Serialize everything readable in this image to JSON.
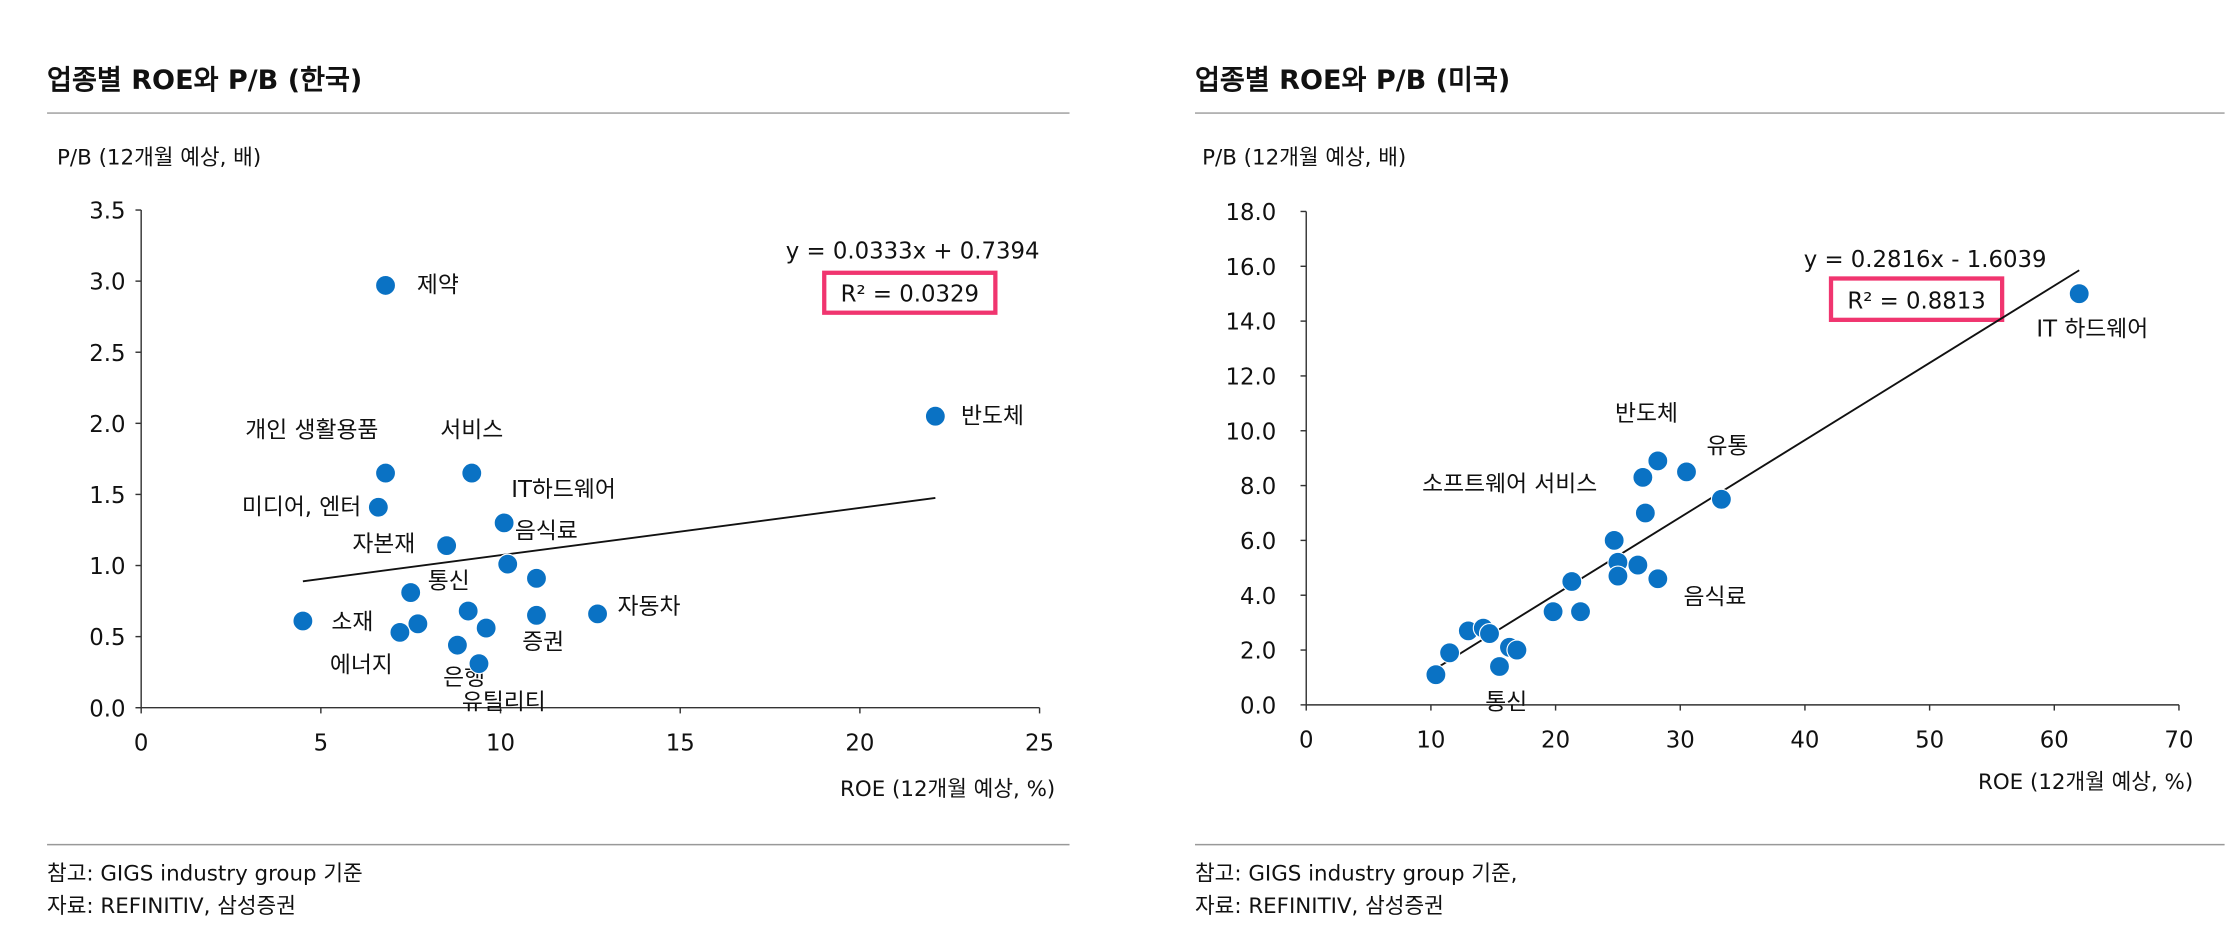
{
  "colors": {
    "point": "#0a72c4",
    "box": "#f0356f",
    "axis": "#333333",
    "rule": "#999999"
  },
  "chart_data": [
    {
      "type": "scatter",
      "title": "업종별 ROE와 P/B (한국)",
      "ylabel": "P/B (12개월 예상, 배)",
      "xlabel": "ROE (12개월 예상, %)",
      "xlim": [
        0,
        25
      ],
      "ylim": [
        0,
        3.5
      ],
      "xticks": [
        "0",
        "5",
        "10",
        "15",
        "20",
        "25"
      ],
      "yticks": [
        "0.0",
        "0.5",
        "1.0",
        "1.5",
        "2.0",
        "2.5",
        "3.0",
        "3.5"
      ],
      "trend": {
        "equation": "y = 0.0333x + 0.7394",
        "r2": "R² = 0.0329",
        "slope": 0.0333,
        "intercept": 0.7394,
        "x_range": [
          4.5,
          22.1
        ]
      },
      "points": [
        {
          "x": 6.8,
          "y": 2.97,
          "label": "제약"
        },
        {
          "x": 22.1,
          "y": 2.05,
          "label": "반도체"
        },
        {
          "x": 6.8,
          "y": 1.65,
          "label": "개인 생활용품"
        },
        {
          "x": 9.2,
          "y": 1.65,
          "label": "서비스"
        },
        {
          "x": 6.6,
          "y": 1.41,
          "label": "미디어, 엔터"
        },
        {
          "x": 10.1,
          "y": 1.3,
          "label": "IT하드웨어"
        },
        {
          "x": 8.5,
          "y": 1.14,
          "label": "자본재"
        },
        {
          "x": 10.2,
          "y": 1.01,
          "label": "음식료"
        },
        {
          "x": 11.0,
          "y": 0.91,
          "label": ""
        },
        {
          "x": 7.5,
          "y": 0.81,
          "label": "통신"
        },
        {
          "x": 9.1,
          "y": 0.68,
          "label": ""
        },
        {
          "x": 11.0,
          "y": 0.65,
          "label": "증권"
        },
        {
          "x": 12.7,
          "y": 0.66,
          "label": "자동차"
        },
        {
          "x": 4.5,
          "y": 0.61,
          "label": "소재"
        },
        {
          "x": 7.7,
          "y": 0.59,
          "label": ""
        },
        {
          "x": 7.2,
          "y": 0.53,
          "label": "에너지"
        },
        {
          "x": 9.6,
          "y": 0.56,
          "label": ""
        },
        {
          "x": 8.8,
          "y": 0.44,
          "label": "은행"
        },
        {
          "x": 9.4,
          "y": 0.31,
          "label": "유틸리티"
        }
      ],
      "notes": [
        "참고: GIGS industry group 기준",
        "자료: REFINITIV, 삼성증권"
      ]
    },
    {
      "type": "scatter",
      "title": "업종별 ROE와 P/B (미국)",
      "ylabel": "P/B (12개월 예상, 배)",
      "xlabel": "ROE (12개월 예상, %)",
      "xlim": [
        0,
        70
      ],
      "ylim": [
        0,
        18
      ],
      "xticks": [
        "0",
        "10",
        "20",
        "30",
        "40",
        "50",
        "60",
        "70"
      ],
      "yticks": [
        "0.0",
        "2.0",
        "4.0",
        "6.0",
        "8.0",
        "10.0",
        "12.0",
        "14.0",
        "16.0",
        "18.0"
      ],
      "trend": {
        "equation": "y = 0.2816x - 1.6039",
        "r2": "R² = 0.8813",
        "slope": 0.2816,
        "intercept": -1.6039,
        "x_range": [
          10.4,
          62
        ]
      },
      "points": [
        {
          "x": 62,
          "y": 15.0,
          "label": "IT 하드웨어"
        },
        {
          "x": 30.5,
          "y": 8.5,
          "label": "유통"
        },
        {
          "x": 28.2,
          "y": 8.9,
          "label": "반도체"
        },
        {
          "x": 27.0,
          "y": 8.3,
          "label": "소프트웨어 서비스"
        },
        {
          "x": 33.3,
          "y": 7.5,
          "label": ""
        },
        {
          "x": 27.2,
          "y": 7.0,
          "label": ""
        },
        {
          "x": 24.7,
          "y": 6.0,
          "label": ""
        },
        {
          "x": 25.0,
          "y": 5.2,
          "label": ""
        },
        {
          "x": 26.6,
          "y": 5.1,
          "label": ""
        },
        {
          "x": 25.0,
          "y": 4.7,
          "label": ""
        },
        {
          "x": 28.2,
          "y": 4.6,
          "label": "음식료"
        },
        {
          "x": 21.3,
          "y": 4.5,
          "label": ""
        },
        {
          "x": 19.8,
          "y": 3.4,
          "label": ""
        },
        {
          "x": 22.0,
          "y": 3.4,
          "label": ""
        },
        {
          "x": 13.0,
          "y": 2.7,
          "label": ""
        },
        {
          "x": 14.2,
          "y": 2.8,
          "label": ""
        },
        {
          "x": 14.7,
          "y": 2.6,
          "label": ""
        },
        {
          "x": 11.5,
          "y": 1.9,
          "label": ""
        },
        {
          "x": 16.3,
          "y": 2.1,
          "label": ""
        },
        {
          "x": 16.9,
          "y": 2.0,
          "label": ""
        },
        {
          "x": 15.5,
          "y": 1.4,
          "label": "통신"
        },
        {
          "x": 10.4,
          "y": 1.1,
          "label": ""
        }
      ],
      "notes": [
        "참고: GIGS industry group 기준,",
        "자료: REFINITIV, 삼성증권"
      ]
    }
  ]
}
